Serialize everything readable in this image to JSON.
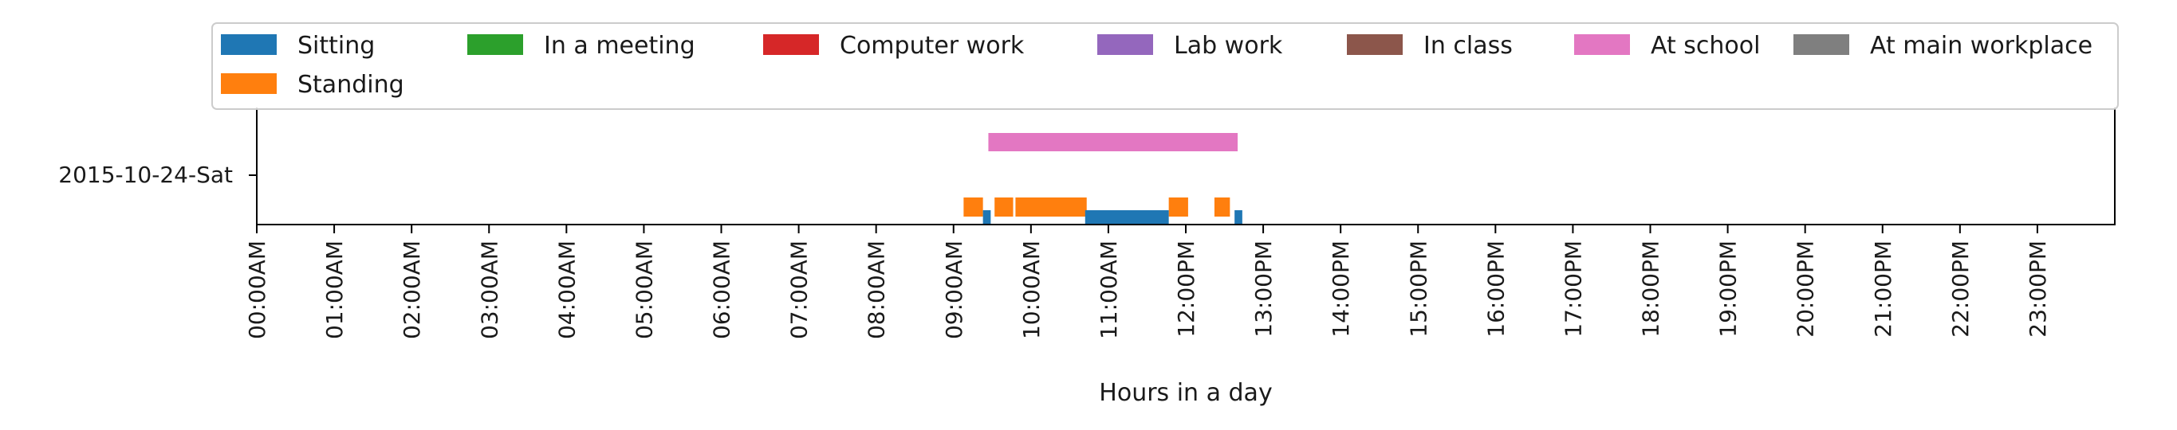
{
  "chart_data": {
    "type": "timeline",
    "xlabel": "Hours in a day",
    "xlim": [
      0,
      24
    ],
    "ylabel": "",
    "grid": false,
    "legend_placement": "top",
    "rows": [
      "2015-10-24-Sat"
    ],
    "x_ticks": [
      "00:00AM",
      "01:00AM",
      "02:00AM",
      "03:00AM",
      "04:00AM",
      "05:00AM",
      "06:00AM",
      "07:00AM",
      "08:00AM",
      "09:00AM",
      "10:00AM",
      "11:00AM",
      "12:00PM",
      "13:00PM",
      "14:00PM",
      "15:00PM",
      "16:00PM",
      "17:00PM",
      "18:00PM",
      "19:00PM",
      "20:00PM",
      "21:00PM",
      "22:00PM",
      "23:00PM"
    ],
    "categories": [
      {
        "name": "Sitting",
        "color": "#1f77b4",
        "lane": "bottom-thin"
      },
      {
        "name": "Standing",
        "color": "#ff7f0e",
        "lane": "bottom"
      },
      {
        "name": "In a meeting",
        "color": "#2ca02c",
        "lane": "bottom"
      },
      {
        "name": "Computer work",
        "color": "#d62728",
        "lane": "bottom"
      },
      {
        "name": "Lab work",
        "color": "#9467bd",
        "lane": "bottom"
      },
      {
        "name": "In class",
        "color": "#8c564b",
        "lane": "bottom"
      },
      {
        "name": "At school",
        "color": "#e377c2",
        "lane": "top"
      },
      {
        "name": "At main workplace",
        "color": "#7f7f7f",
        "lane": "top"
      }
    ],
    "segments": [
      {
        "row": "2015-10-24-Sat",
        "category": "At school",
        "start": 9.45,
        "end": 12.67
      },
      {
        "row": "2015-10-24-Sat",
        "category": "Standing",
        "start": 9.13,
        "end": 9.38
      },
      {
        "row": "2015-10-24-Sat",
        "category": "Standing",
        "start": 9.53,
        "end": 9.77
      },
      {
        "row": "2015-10-24-Sat",
        "category": "Standing",
        "start": 9.8,
        "end": 10.72
      },
      {
        "row": "2015-10-24-Sat",
        "category": "Standing",
        "start": 11.78,
        "end": 12.03
      },
      {
        "row": "2015-10-24-Sat",
        "category": "Standing",
        "start": 12.37,
        "end": 12.57
      },
      {
        "row": "2015-10-24-Sat",
        "category": "Sitting",
        "start": 9.38,
        "end": 9.48
      },
      {
        "row": "2015-10-24-Sat",
        "category": "Sitting",
        "start": 10.7,
        "end": 11.78
      },
      {
        "row": "2015-10-24-Sat",
        "category": "Sitting",
        "start": 12.63,
        "end": 12.73
      }
    ]
  }
}
